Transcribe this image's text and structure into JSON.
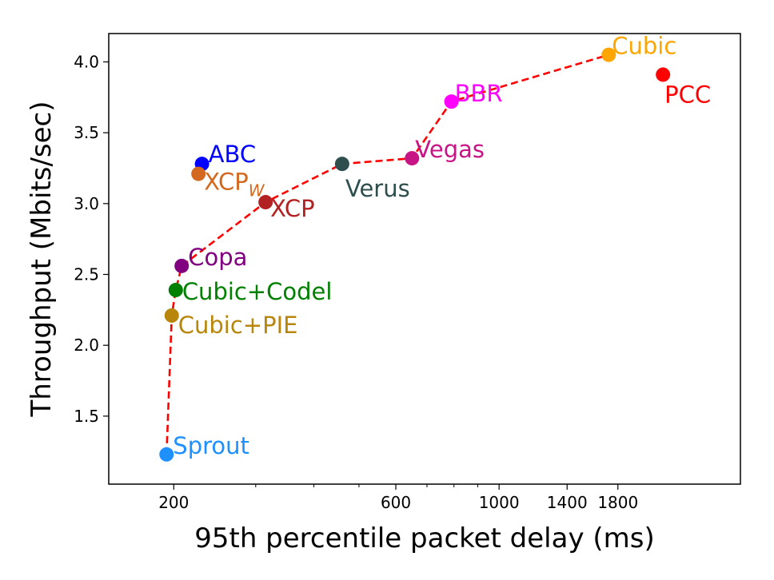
{
  "chart_data": {
    "type": "scatter",
    "title": "",
    "xlabel": "95th percentile packet delay (ms)",
    "ylabel": "Throughput (Mbits/sec)",
    "xscale": "log",
    "xlim": [
      145,
      3300
    ],
    "ylim": [
      1.02,
      4.2
    ],
    "xticks": [
      200,
      600,
      1000,
      1400,
      1800
    ],
    "xtick_labels": [
      "200",
      "600",
      "1000",
      "1400",
      "1800"
    ],
    "x_minor_ticks": [
      300,
      400,
      500,
      700,
      800,
      900
    ],
    "yticks": [
      1.5,
      2.0,
      2.5,
      3.0,
      3.5,
      4.0
    ],
    "ytick_labels": [
      "1.5",
      "2.0",
      "2.5",
      "3.0",
      "3.5",
      "4.0"
    ],
    "points": [
      {
        "name": "Sprout",
        "label_main": "Sprout",
        "label_sub": "",
        "x": 193,
        "y": 1.23,
        "color": "#1e90ff"
      },
      {
        "name": "Cubic+PIE",
        "label_main": "Cubic+PIE",
        "label_sub": "",
        "x": 198,
        "y": 2.21,
        "color": "#b8860b"
      },
      {
        "name": "Cubic+Codel",
        "label_main": "Cubic+Codel",
        "label_sub": "",
        "x": 202,
        "y": 2.39,
        "color": "#008000"
      },
      {
        "name": "Copa",
        "label_main": "Copa",
        "label_sub": "",
        "x": 208,
        "y": 2.56,
        "color": "#800080"
      },
      {
        "name": "XCP",
        "label_main": "XCP",
        "label_sub": "",
        "x": 315,
        "y": 3.01,
        "color": "#b22222"
      },
      {
        "name": "Verus",
        "label_main": "Verus",
        "label_sub": "",
        "x": 460,
        "y": 3.28,
        "color": "#2f4f4f"
      },
      {
        "name": "Vegas",
        "label_main": "Vegas",
        "label_sub": "",
        "x": 650,
        "y": 3.32,
        "color": "#c71585"
      },
      {
        "name": "BBR",
        "label_main": "BBR",
        "label_sub": "",
        "x": 790,
        "y": 3.72,
        "color": "#ff00ff"
      },
      {
        "name": "Cubic",
        "label_main": "Cubic",
        "label_sub": "",
        "x": 1720,
        "y": 4.05,
        "color": "#ffa500"
      },
      {
        "name": "PCC",
        "label_main": "PCC",
        "label_sub": "",
        "x": 2250,
        "y": 3.91,
        "color": "#ff0000"
      },
      {
        "name": "ABC",
        "label_main": "ABC",
        "label_sub": "",
        "x": 230,
        "y": 3.28,
        "color": "#0000ff"
      },
      {
        "name": "XCPw",
        "label_main": "XCP",
        "label_sub": "W",
        "x": 226,
        "y": 3.21,
        "color": "#d2691e"
      }
    ],
    "frontier": {
      "style": "dashed",
      "color": "#ff0000",
      "x": [
        193,
        198,
        202,
        208,
        315,
        460,
        650,
        790,
        1720
      ],
      "y": [
        1.23,
        2.21,
        2.39,
        2.56,
        3.01,
        3.28,
        3.32,
        3.72,
        4.05
      ]
    }
  }
}
